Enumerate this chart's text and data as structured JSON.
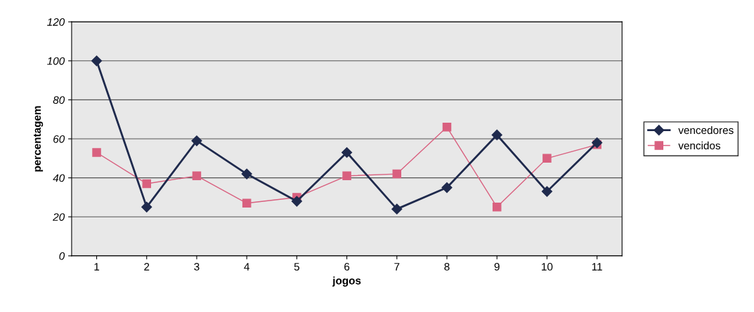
{
  "chart_data": {
    "type": "line",
    "xlabel": "jogos",
    "ylabel": "percentagem",
    "categories": [
      "1",
      "2",
      "3",
      "4",
      "5",
      "6",
      "7",
      "8",
      "9",
      "10",
      "11"
    ],
    "series": [
      {
        "name": "vencedores",
        "color": "#1f2a4d",
        "marker": "diamond",
        "values": [
          100,
          25,
          59,
          42,
          28,
          53,
          24,
          35,
          62,
          33,
          58
        ]
      },
      {
        "name": "vencidos",
        "color": "#d9607f",
        "marker": "square",
        "values": [
          53,
          37,
          41,
          27,
          30,
          41,
          42,
          66,
          25,
          50,
          57
        ]
      }
    ],
    "ylim": [
      0,
      120
    ],
    "yticks": [
      0,
      20,
      40,
      60,
      80,
      100,
      120
    ],
    "grid": "y",
    "legend": "right",
    "line_style": "solid"
  }
}
